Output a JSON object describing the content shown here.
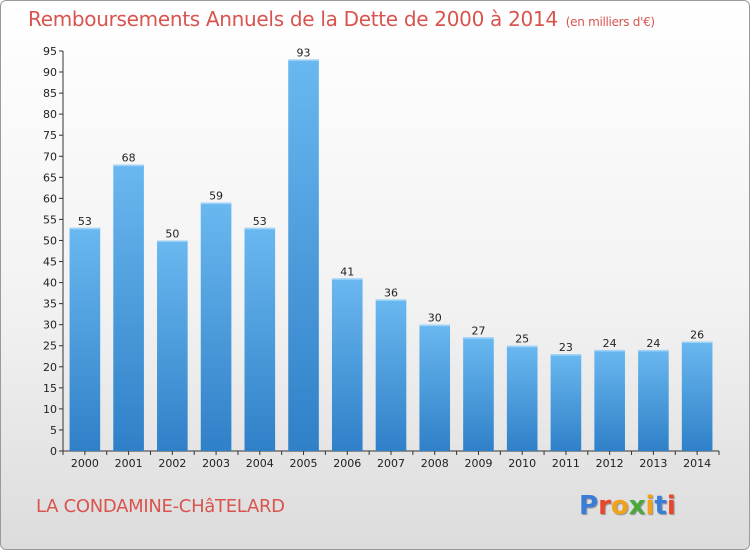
{
  "header": {
    "title": "Remboursements Annuels de la Dette de 2000 à 2014",
    "subtitle": "(en milliers d'€)"
  },
  "footer": {
    "city": "LA CONDAMINE-CHâTELARD",
    "logo_text": "Proxiti"
  },
  "colors": {
    "title": "#d9544f",
    "bar_light": "#6ab8f0",
    "bar_dark": "#2f80c8",
    "logo_letters": [
      "#3a7dd8",
      "#e8472c",
      "#f0a21a",
      "#49a83a",
      "#f0a21a",
      "#3a7dd8",
      "#e8472c"
    ]
  },
  "chart_data": {
    "type": "bar",
    "categories": [
      "2000",
      "2001",
      "2002",
      "2003",
      "2004",
      "2005",
      "2006",
      "2007",
      "2008",
      "2009",
      "2010",
      "2011",
      "2012",
      "2013",
      "2014"
    ],
    "values": [
      53,
      68,
      50,
      59,
      53,
      93,
      41,
      36,
      30,
      27,
      25,
      23,
      24,
      24,
      26
    ],
    "title": "Remboursements Annuels de la Dette de 2000 à 2014",
    "xlabel": "",
    "ylabel": "",
    "ylim": [
      0,
      95
    ],
    "yticks": [
      0,
      5,
      10,
      15,
      20,
      25,
      30,
      35,
      40,
      45,
      50,
      55,
      60,
      65,
      70,
      75,
      80,
      85,
      90,
      95
    ],
    "grid": false,
    "legend": "none"
  }
}
